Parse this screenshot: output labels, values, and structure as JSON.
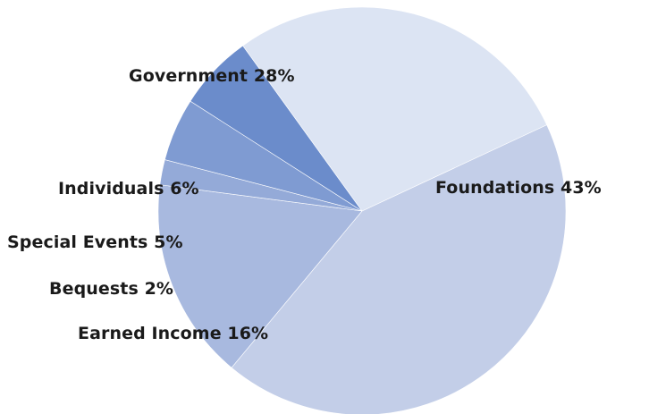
{
  "chart_data": {
    "type": "pie",
    "categories": [
      "Foundations",
      "Earned Income",
      "Bequests",
      "Special Events",
      "Individuals",
      "Government"
    ],
    "values": [
      43,
      16,
      2,
      5,
      6,
      28
    ],
    "labels": [
      "Foundations 43%",
      "Earned Income 16%",
      "Bequests 2%",
      "Special Events 5%",
      "Individuals 6%",
      "Government 28%"
    ],
    "colors": [
      "#c3cee8",
      "#a8b9df",
      "#94aad8",
      "#7f9bd2",
      "#6b8ccb",
      "#dce4f3"
    ],
    "start_angle_deg": 65,
    "direction": "clockwise",
    "legend": "none"
  }
}
